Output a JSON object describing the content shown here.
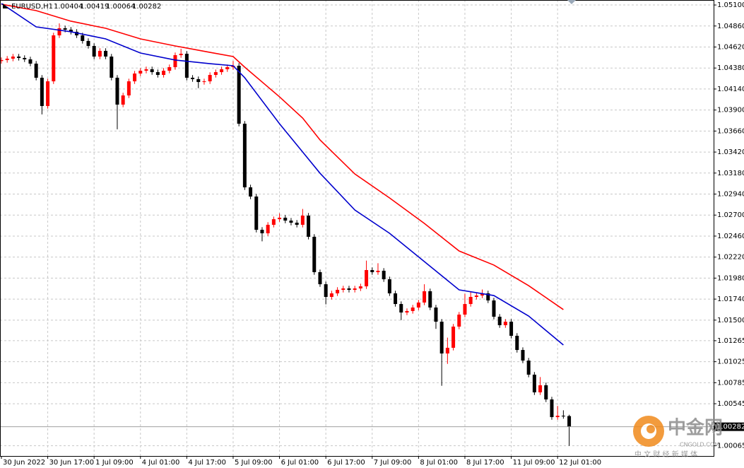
{
  "chart_data": {
    "type": "candlestick",
    "symbol": "EURUSD,H1",
    "open": [
      1.0446,
      1.04471,
      1.04487,
      1.04511,
      1.04495,
      1.04479,
      1.0443,
      1.04269,
      1.03946,
      1.04228,
      1.04753,
      1.04834,
      1.04818,
      1.04794,
      1.04753,
      1.04689,
      1.04632,
      1.04511,
      1.04576,
      1.04511,
      1.04269,
      1.03962,
      1.04067,
      1.04228,
      1.04317,
      1.04349,
      1.04366,
      1.04333,
      1.04301,
      1.04349,
      1.0439,
      1.04527,
      1.04543,
      1.04269,
      1.04253,
      1.0422,
      1.04228,
      1.04301,
      1.04333,
      1.04366,
      1.0439,
      1.04406,
      1.03744,
      1.03017,
      1.02912,
      1.02532,
      1.02492,
      1.02589,
      1.02653,
      1.0267,
      1.02637,
      1.02613,
      1.02589,
      1.02694,
      1.02452,
      1.02048,
      1.0191,
      1.01765,
      1.01806,
      1.01846,
      1.01862,
      1.01846,
      1.01862,
      1.01886,
      1.02072,
      1.02048,
      1.02064,
      1.01967,
      1.01806,
      1.01684,
      1.01587,
      1.01604,
      1.01644,
      1.01701,
      1.0183,
      1.01644,
      1.01482,
      1.01119,
      1.01184,
      1.01426,
      1.01563,
      1.01684,
      1.01765,
      1.01781,
      1.01806,
      1.01725,
      1.01539,
      1.01442,
      1.01482,
      1.01321,
      1.01159,
      1.01038,
      1.00877,
      1.00675,
      1.00756,
      1.00594,
      1.00392,
      1.00408,
      1.00404
    ],
    "high": [
      1.04501,
      1.04517,
      1.04541,
      1.04541,
      1.04525,
      1.04509,
      1.0446,
      1.04299,
      1.04258,
      1.04783,
      1.0489,
      1.04864,
      1.04848,
      1.04824,
      1.04783,
      1.04719,
      1.04662,
      1.04606,
      1.04606,
      1.04541,
      1.04299,
      1.04097,
      1.04258,
      1.04347,
      1.04379,
      1.04396,
      1.04396,
      1.04363,
      1.04379,
      1.0442,
      1.04557,
      1.046,
      1.04573,
      1.04299,
      1.04283,
      1.04258,
      1.04331,
      1.04363,
      1.04396,
      1.0442,
      1.0446,
      1.04436,
      1.03774,
      1.03047,
      1.02942,
      1.02562,
      1.02619,
      1.02683,
      1.0272,
      1.027,
      1.02667,
      1.02643,
      1.0277,
      1.02724,
      1.02482,
      1.02078,
      1.0194,
      1.01836,
      1.01876,
      1.01892,
      1.01892,
      1.01892,
      1.01916,
      1.0218,
      1.02102,
      1.0215,
      1.02094,
      1.01997,
      1.01836,
      1.01714,
      1.01634,
      1.01674,
      1.01731,
      1.0191,
      1.0186,
      1.01674,
      1.01512,
      1.013,
      1.01456,
      1.01593,
      1.018,
      1.0183,
      1.01811,
      1.0185,
      1.01836,
      1.01755,
      1.01569,
      1.01512,
      1.01512,
      1.01351,
      1.01189,
      1.01068,
      1.00907,
      1.0085,
      1.00786,
      1.00624,
      1.0052,
      1.0047,
      1.00419
    ],
    "low": [
      1.0443,
      1.04441,
      1.04457,
      1.04465,
      1.04449,
      1.044,
      1.04239,
      1.0385,
      1.03916,
      1.04198,
      1.04723,
      1.04788,
      1.04764,
      1.04723,
      1.04659,
      1.04602,
      1.04481,
      1.04481,
      1.04481,
      1.04239,
      1.0368,
      1.03932,
      1.04037,
      1.04198,
      1.04287,
      1.04319,
      1.04303,
      1.04271,
      1.04271,
      1.04319,
      1.0436,
      1.04497,
      1.04239,
      1.04223,
      1.0415,
      1.0419,
      1.04198,
      1.04271,
      1.04303,
      1.04336,
      1.0436,
      1.03714,
      1.02987,
      1.02882,
      1.02502,
      1.024,
      1.02462,
      1.02559,
      1.02623,
      1.02607,
      1.02583,
      1.02559,
      1.02559,
      1.02422,
      1.02018,
      1.0188,
      1.0168,
      1.01735,
      1.01776,
      1.01816,
      1.01816,
      1.01816,
      1.01832,
      1.01856,
      1.02018,
      1.02018,
      1.01937,
      1.01776,
      1.01654,
      1.015,
      1.01557,
      1.01574,
      1.01614,
      1.01671,
      1.01614,
      1.014,
      1.0075,
      1.01,
      1.01154,
      1.01396,
      1.01533,
      1.01654,
      1.01735,
      1.01751,
      1.01695,
      1.01509,
      1.01412,
      1.01412,
      1.01291,
      1.01129,
      1.01008,
      1.00847,
      1.00645,
      1.00645,
      1.00564,
      1.00362,
      1.00362,
      1.00374,
      1.00064
    ],
    "close": [
      1.04471,
      1.04487,
      1.04511,
      1.04495,
      1.04479,
      1.0443,
      1.04269,
      1.03946,
      1.04228,
      1.04753,
      1.04834,
      1.04818,
      1.04794,
      1.04753,
      1.04689,
      1.04632,
      1.04511,
      1.04576,
      1.04511,
      1.04269,
      1.03962,
      1.04067,
      1.04228,
      1.04317,
      1.04349,
      1.04366,
      1.04333,
      1.04301,
      1.04349,
      1.0439,
      1.04527,
      1.04543,
      1.04269,
      1.04253,
      1.0422,
      1.04228,
      1.04301,
      1.04333,
      1.04366,
      1.0439,
      1.04406,
      1.03744,
      1.03017,
      1.02912,
      1.02532,
      1.02492,
      1.02589,
      1.02653,
      1.0267,
      1.02637,
      1.02613,
      1.02589,
      1.02694,
      1.02452,
      1.02048,
      1.0191,
      1.01765,
      1.01806,
      1.01846,
      1.01862,
      1.01846,
      1.01862,
      1.01886,
      1.02072,
      1.02048,
      1.02064,
      1.01967,
      1.01806,
      1.01684,
      1.01587,
      1.01604,
      1.01644,
      1.01701,
      1.0183,
      1.01644,
      1.01482,
      1.01119,
      1.01184,
      1.01426,
      1.01563,
      1.01684,
      1.01765,
      1.01781,
      1.01806,
      1.01725,
      1.01539,
      1.01442,
      1.01482,
      1.01321,
      1.01159,
      1.01038,
      1.00877,
      1.00675,
      1.00756,
      1.00594,
      1.00392,
      1.00408,
      1.00404,
      1.00282
    ],
    "up_color": "#ff0000",
    "down_color": "#000000",
    "series": [
      {
        "color": "#ff0000",
        "x": [
          0,
          6,
          12,
          18,
          24,
          30,
          36,
          40,
          42,
          48,
          52,
          55,
          61,
          67,
          73,
          79,
          85,
          91,
          97
        ],
        "values": [
          1.05109,
          1.05036,
          1.04915,
          1.04834,
          1.04713,
          1.04632,
          1.04559,
          1.04511,
          1.0439,
          1.04051,
          1.03808,
          1.03558,
          1.0317,
          1.02896,
          1.02605,
          1.0229,
          1.02129,
          1.01894,
          1.0162
        ]
      },
      {
        "color": "#0000cd",
        "x": [
          0,
          6,
          12,
          18,
          24,
          30,
          36,
          40,
          42,
          48,
          52,
          55,
          61,
          67,
          73,
          79,
          85,
          91,
          97
        ],
        "values": [
          1.05117,
          1.0485,
          1.04794,
          1.04713,
          1.04551,
          1.04471,
          1.0443,
          1.04406,
          1.04269,
          1.03744,
          1.03421,
          1.03178,
          1.02758,
          1.02492,
          1.02169,
          1.01846,
          1.01781,
          1.01547,
          1.01216
        ]
      }
    ],
    "xlim": [
      -0.24,
      122.93
    ],
    "xticks": [
      {
        "value": 0,
        "label": "30 Jun 2022"
      },
      {
        "value": 8,
        "label": "30 Jun 17:00"
      },
      {
        "value": 16,
        "label": "1 Jul 09:00"
      },
      {
        "value": 24,
        "label": "4 Jul 01:00"
      },
      {
        "value": 32,
        "label": "4 Jul 17:00"
      },
      {
        "value": 40,
        "label": "5 Jul 09:00"
      },
      {
        "value": 48,
        "label": "6 Jul 01:00"
      },
      {
        "value": 56,
        "label": "6 Jul 17:00"
      },
      {
        "value": 64,
        "label": "7 Jul 09:00"
      },
      {
        "value": 72,
        "label": "8 Jul 01:00"
      },
      {
        "value": 80,
        "label": "8 Jul 17:00"
      },
      {
        "value": 88,
        "label": "11 Jul 09:00"
      },
      {
        "value": 96,
        "label": "12 Jul 01:00"
      }
    ],
    "ylim": [
      0.99948,
      1.05157
    ],
    "yticks": [
      {
        "value": 1.051,
        "label": "1.05100"
      },
      {
        "value": 1.0486,
        "label": "1.04860"
      },
      {
        "value": 1.0462,
        "label": "1.04620"
      },
      {
        "value": 1.0438,
        "label": "1.04380"
      },
      {
        "value": 1.0414,
        "label": "1.04140"
      },
      {
        "value": 1.039,
        "label": "1.03900"
      },
      {
        "value": 1.0366,
        "label": "1.03660"
      },
      {
        "value": 1.0342,
        "label": "1.03420"
      },
      {
        "value": 1.0318,
        "label": "1.03180"
      },
      {
        "value": 1.0294,
        "label": "1.02940"
      },
      {
        "value": 1.027,
        "label": "1.02700"
      },
      {
        "value": 1.0246,
        "label": "1.02460"
      },
      {
        "value": 1.0222,
        "label": "1.02220"
      },
      {
        "value": 1.0198,
        "label": "1.01980"
      },
      {
        "value": 1.0174,
        "label": "1.01740"
      },
      {
        "value": 1.015,
        "label": "1.01500"
      },
      1.01265,
      1.01025,
      1.00785,
      1.00545,
      1.00065
    ],
    "current_price": 1.00282,
    "grid": true
  },
  "watermark": {
    "brand": "中金网",
    "domain": "CNGOLD.COM",
    "slogan": "中 文 财 经 新 媒 体"
  }
}
